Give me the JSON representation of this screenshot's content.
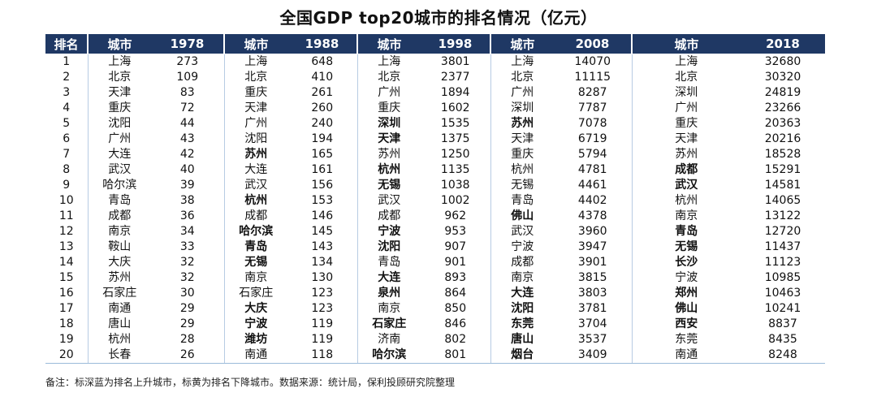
{
  "title": "全国GDP top20城市的排名情况（亿元）",
  "headers": [
    "排名",
    "城市",
    "1978",
    "城市",
    "1988",
    "城市",
    "1998",
    "城市",
    "2008",
    "城市",
    "2018"
  ],
  "rows": [
    {
      "rank": "1",
      "c1978": "上海",
      "v1978": "273",
      "s1978": "",
      "c1988": "上海",
      "v1988": "648",
      "s1988": "",
      "c1998": "上海",
      "v1998": "3801",
      "s1998": "",
      "c2008": "上海",
      "v2008": "14070",
      "s2008": "",
      "c2018": "上海",
      "v2018": "32680",
      "s2018": ""
    },
    {
      "rank": "2",
      "c1978": "北京",
      "v1978": "109",
      "s1978": "",
      "c1988": "北京",
      "v1988": "410",
      "s1988": "",
      "c1998": "北京",
      "v1998": "2377",
      "s1998": "",
      "c2008": "北京",
      "v2008": "11115",
      "s2008": "",
      "c2018": "北京",
      "v2018": "30320",
      "s2018": ""
    },
    {
      "rank": "3",
      "c1978": "天津",
      "v1978": "83",
      "s1978": "",
      "c1988": "重庆",
      "v1988": "261",
      "s1988": "",
      "c1998": "广州",
      "v1998": "1894",
      "s1998": "",
      "c2008": "广州",
      "v2008": "8287",
      "s2008": "",
      "c2018": "深圳",
      "v2018": "24819",
      "s2018": ""
    },
    {
      "rank": "4",
      "c1978": "重庆",
      "v1978": "72",
      "s1978": "",
      "c1988": "天津",
      "v1988": "260",
      "s1988": "",
      "c1998": "重庆",
      "v1998": "1602",
      "s1998": "",
      "c2008": "深圳",
      "v2008": "7787",
      "s2008": "",
      "c2018": "广州",
      "v2018": "23266",
      "s2018": ""
    },
    {
      "rank": "5",
      "c1978": "沈阳",
      "v1978": "44",
      "s1978": "",
      "c1988": "广州",
      "v1988": "240",
      "s1988": "",
      "c1998": "深圳",
      "v1998": "1535",
      "s1998": "up",
      "c2008": "苏州",
      "v2008": "7078",
      "s2008": "up",
      "c2018": "重庆",
      "v2018": "20363",
      "s2018": ""
    },
    {
      "rank": "6",
      "c1978": "广州",
      "v1978": "43",
      "s1978": "",
      "c1988": "沈阳",
      "v1988": "194",
      "s1988": "",
      "c1998": "天津",
      "v1998": "1375",
      "s1998": "down",
      "c2008": "天津",
      "v2008": "6719",
      "s2008": "",
      "c2018": "天津",
      "v2018": "20216",
      "s2018": ""
    },
    {
      "rank": "7",
      "c1978": "大连",
      "v1978": "42",
      "s1978": "",
      "c1988": "苏州",
      "v1988": "165",
      "s1988": "up",
      "c1998": "苏州",
      "v1998": "1250",
      "s1998": "",
      "c2008": "重庆",
      "v2008": "5794",
      "s2008": "",
      "c2018": "苏州",
      "v2018": "18528",
      "s2018": ""
    },
    {
      "rank": "8",
      "c1978": "武汉",
      "v1978": "40",
      "s1978": "",
      "c1988": "大连",
      "v1988": "161",
      "s1988": "",
      "c1998": "杭州",
      "v1998": "1135",
      "s1998": "up",
      "c2008": "杭州",
      "v2008": "4781",
      "s2008": "",
      "c2018": "成都",
      "v2018": "15291",
      "s2018": "up"
    },
    {
      "rank": "9",
      "c1978": "哈尔滨",
      "v1978": "39",
      "s1978": "",
      "c1988": "武汉",
      "v1988": "156",
      "s1988": "",
      "c1998": "无锡",
      "v1998": "1038",
      "s1998": "up",
      "c2008": "无锡",
      "v2008": "4461",
      "s2008": "",
      "c2018": "武汉",
      "v2018": "14581",
      "s2018": "up"
    },
    {
      "rank": "10",
      "c1978": "青岛",
      "v1978": "38",
      "s1978": "",
      "c1988": "杭州",
      "v1988": "153",
      "s1988": "up",
      "c1998": "武汉",
      "v1998": "1002",
      "s1998": "",
      "c2008": "青岛",
      "v2008": "4402",
      "s2008": "",
      "c2018": "杭州",
      "v2018": "14065",
      "s2018": ""
    },
    {
      "rank": "11",
      "c1978": "成都",
      "v1978": "36",
      "s1978": "",
      "c1988": "成都",
      "v1988": "146",
      "s1988": "",
      "c1998": "成都",
      "v1998": "962",
      "s1998": "",
      "c2008": "佛山",
      "v2008": "4378",
      "s2008": "up",
      "c2018": "南京",
      "v2018": "13122",
      "s2018": ""
    },
    {
      "rank": "12",
      "c1978": "南京",
      "v1978": "34",
      "s1978": "",
      "c1988": "哈尔滨",
      "v1988": "145",
      "s1988": "down",
      "c1998": "宁波",
      "v1998": "953",
      "s1998": "up",
      "c2008": "武汉",
      "v2008": "3960",
      "s2008": "",
      "c2018": "青岛",
      "v2018": "12720",
      "s2018": "down"
    },
    {
      "rank": "13",
      "c1978": "鞍山",
      "v1978": "33",
      "s1978": "",
      "c1988": "青岛",
      "v1988": "143",
      "s1988": "down",
      "c1998": "沈阳",
      "v1998": "907",
      "s1998": "down",
      "c2008": "宁波",
      "v2008": "3947",
      "s2008": "",
      "c2018": "无锡",
      "v2018": "11437",
      "s2018": "down"
    },
    {
      "rank": "14",
      "c1978": "大庆",
      "v1978": "32",
      "s1978": "",
      "c1988": "无锡",
      "v1988": "134",
      "s1988": "up",
      "c1998": "青岛",
      "v1998": "901",
      "s1998": "",
      "c2008": "成都",
      "v2008": "3901",
      "s2008": "",
      "c2018": "长沙",
      "v2018": "11123",
      "s2018": "up"
    },
    {
      "rank": "15",
      "c1978": "苏州",
      "v1978": "32",
      "s1978": "",
      "c1988": "南京",
      "v1988": "130",
      "s1988": "",
      "c1998": "大连",
      "v1998": "893",
      "s1998": "down",
      "c2008": "南京",
      "v2008": "3815",
      "s2008": "",
      "c2018": "宁波",
      "v2018": "10985",
      "s2018": ""
    },
    {
      "rank": "16",
      "c1978": "石家庄",
      "v1978": "30",
      "s1978": "",
      "c1988": "石家庄",
      "v1988": "123",
      "s1988": "",
      "c1998": "泉州",
      "v1998": "864",
      "s1998": "up",
      "c2008": "大连",
      "v2008": "3803",
      "s2008": "down",
      "c2018": "郑州",
      "v2018": "10463",
      "s2018": "up"
    },
    {
      "rank": "17",
      "c1978": "南通",
      "v1978": "29",
      "s1978": "",
      "c1988": "大庆",
      "v1988": "123",
      "s1988": "down",
      "c1998": "南京",
      "v1998": "850",
      "s1998": "",
      "c2008": "沈阳",
      "v2008": "3781",
      "s2008": "down",
      "c2018": "佛山",
      "v2018": "10241",
      "s2018": "down"
    },
    {
      "rank": "18",
      "c1978": "唐山",
      "v1978": "29",
      "s1978": "",
      "c1988": "宁波",
      "v1988": "119",
      "s1988": "up",
      "c1998": "石家庄",
      "v1998": "846",
      "s1998": "down",
      "c2008": "东莞",
      "v2008": "3704",
      "s2008": "up",
      "c2018": "西安",
      "v2018": "8837",
      "s2018": "up"
    },
    {
      "rank": "19",
      "c1978": "杭州",
      "v1978": "28",
      "s1978": "",
      "c1988": "潍坊",
      "v1988": "119",
      "s1988": "up",
      "c1998": "济南",
      "v1998": "802",
      "s1998": "",
      "c2008": "唐山",
      "v2008": "3537",
      "s2008": "up",
      "c2018": "东莞",
      "v2018": "8435",
      "s2018": ""
    },
    {
      "rank": "20",
      "c1978": "长春",
      "v1978": "26",
      "s1978": "",
      "c1988": "南通",
      "v1988": "118",
      "s1988": "",
      "c1998": "哈尔滨",
      "v1998": "801",
      "s1998": "down",
      "c2008": "烟台",
      "v2008": "3409",
      "s2008": "up",
      "c2018": "南通",
      "v2018": "8248",
      "s2018": ""
    }
  ],
  "colors": {
    "up": "#1f3c88",
    "down": "#f0b400",
    "header_bg": "#1f3864"
  },
  "note": "备注：标深蓝为排名上升城市，标黄为排名下降城市。数据来源：统计局，保利投顾研究院整理"
}
